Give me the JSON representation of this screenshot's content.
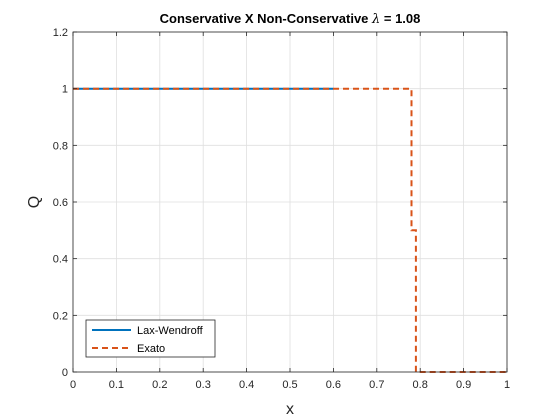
{
  "chart_data": {
    "type": "line",
    "title_text": "Conservative X Non-Conservative ",
    "title_symbol": "λ",
    "title_suffix": " = 1.08",
    "xlabel": "x",
    "ylabel": "Q",
    "xlim": [
      0,
      1
    ],
    "ylim": [
      0,
      1.2
    ],
    "xticks": [
      "0",
      "0.1",
      "0.2",
      "0.3",
      "0.4",
      "0.5",
      "0.6",
      "0.7",
      "0.8",
      "0.9",
      "1"
    ],
    "yticks": [
      "0",
      "0.2",
      "0.4",
      "0.6",
      "0.8",
      "1",
      "1.2"
    ],
    "grid": true,
    "legend_position": "bottom-left",
    "series": [
      {
        "name": "Lax-Wendroff",
        "color": "#0072BD",
        "style": "solid",
        "x": [
          0,
          0.6
        ],
        "y": [
          1,
          1
        ]
      },
      {
        "name": "Exato",
        "color": "#D95319",
        "style": "dashed",
        "x": [
          0,
          0.78,
          0.78,
          0.79,
          0.79,
          1
        ],
        "y": [
          1,
          1,
          0.5,
          0.5,
          0,
          0
        ]
      }
    ]
  }
}
